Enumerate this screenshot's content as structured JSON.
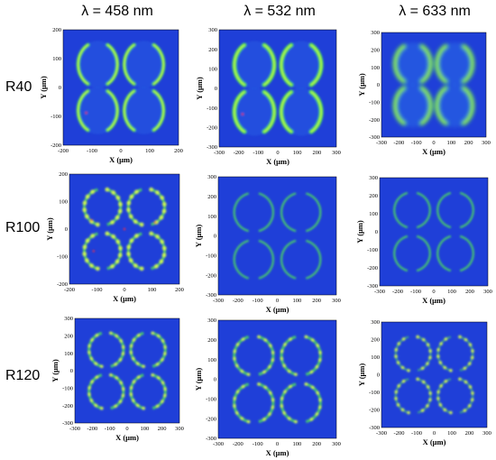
{
  "columns": [
    "λ = 458 nm",
    "λ = 532 nm",
    "λ = 633 nm"
  ],
  "rows": [
    "R40",
    "R100",
    "R120"
  ],
  "axis": {
    "xlabel": "X (μm)",
    "ylabel": "Y (μm)"
  },
  "colors": {
    "background": "#1f3fd8",
    "ring": "#4fe05a",
    "hot": "#d8ff4a",
    "red": "#ff2a40"
  },
  "panels": [
    {
      "id": "r40-458",
      "xticks": [
        "-200",
        "-100",
        "0",
        "100",
        "200"
      ],
      "yticks": [
        "200",
        "100",
        "0",
        "-100",
        "-200"
      ],
      "style": "crescents-small"
    },
    {
      "id": "r40-532",
      "xticks": [
        "-300",
        "-200",
        "-100",
        "0",
        "100",
        "200",
        "300"
      ],
      "yticks": [
        "300",
        "200",
        "100",
        "0",
        "-100",
        "-200",
        "-300"
      ],
      "style": "crescents-large"
    },
    {
      "id": "r40-633",
      "xticks": [
        "-300",
        "-200",
        "-100",
        "0",
        "100",
        "200",
        "300"
      ],
      "yticks": [
        "300",
        "200",
        "100",
        "0",
        "-100",
        "-200",
        "-300"
      ],
      "style": "crescents-diffuse"
    },
    {
      "id": "r100-458",
      "xticks": [
        "-200",
        "-100",
        "0",
        "100",
        "200"
      ],
      "yticks": [
        "200",
        "100",
        "0",
        "-100",
        "-200"
      ],
      "style": "rings-speckle"
    },
    {
      "id": "r100-532",
      "xticks": [
        "-300",
        "-200",
        "-100",
        "0",
        "100",
        "200",
        "300"
      ],
      "yticks": [
        "300",
        "200",
        "100",
        "0",
        "-100",
        "-200",
        "-300"
      ],
      "style": "rings-thin"
    },
    {
      "id": "r100-633",
      "xticks": [
        "-300",
        "-200",
        "-100",
        "0",
        "100",
        "200",
        "300"
      ],
      "yticks": [
        "300",
        "200",
        "100",
        "0",
        "-100",
        "-200",
        "-300"
      ],
      "style": "rings-thin"
    },
    {
      "id": "r120-458",
      "xticks": [
        "-300",
        "-200",
        "-100",
        "0",
        "100",
        "200",
        "300"
      ],
      "yticks": [
        "300",
        "200",
        "100",
        "0",
        "-100",
        "-200",
        "-300"
      ],
      "style": "rings-dots"
    },
    {
      "id": "r120-532",
      "xticks": [
        "-300",
        "-200",
        "-100",
        "0",
        "100",
        "200",
        "300"
      ],
      "yticks": [
        "300",
        "200",
        "100",
        "0",
        "-100",
        "-200",
        "-300"
      ],
      "style": "rings-dots"
    },
    {
      "id": "r120-633",
      "xticks": [
        "-300",
        "-200",
        "-100",
        "0",
        "100",
        "200",
        "300"
      ],
      "yticks": [
        "300",
        "200",
        "100",
        "0",
        "-100",
        "-200",
        "-300"
      ],
      "style": "arcs-inner"
    }
  ]
}
